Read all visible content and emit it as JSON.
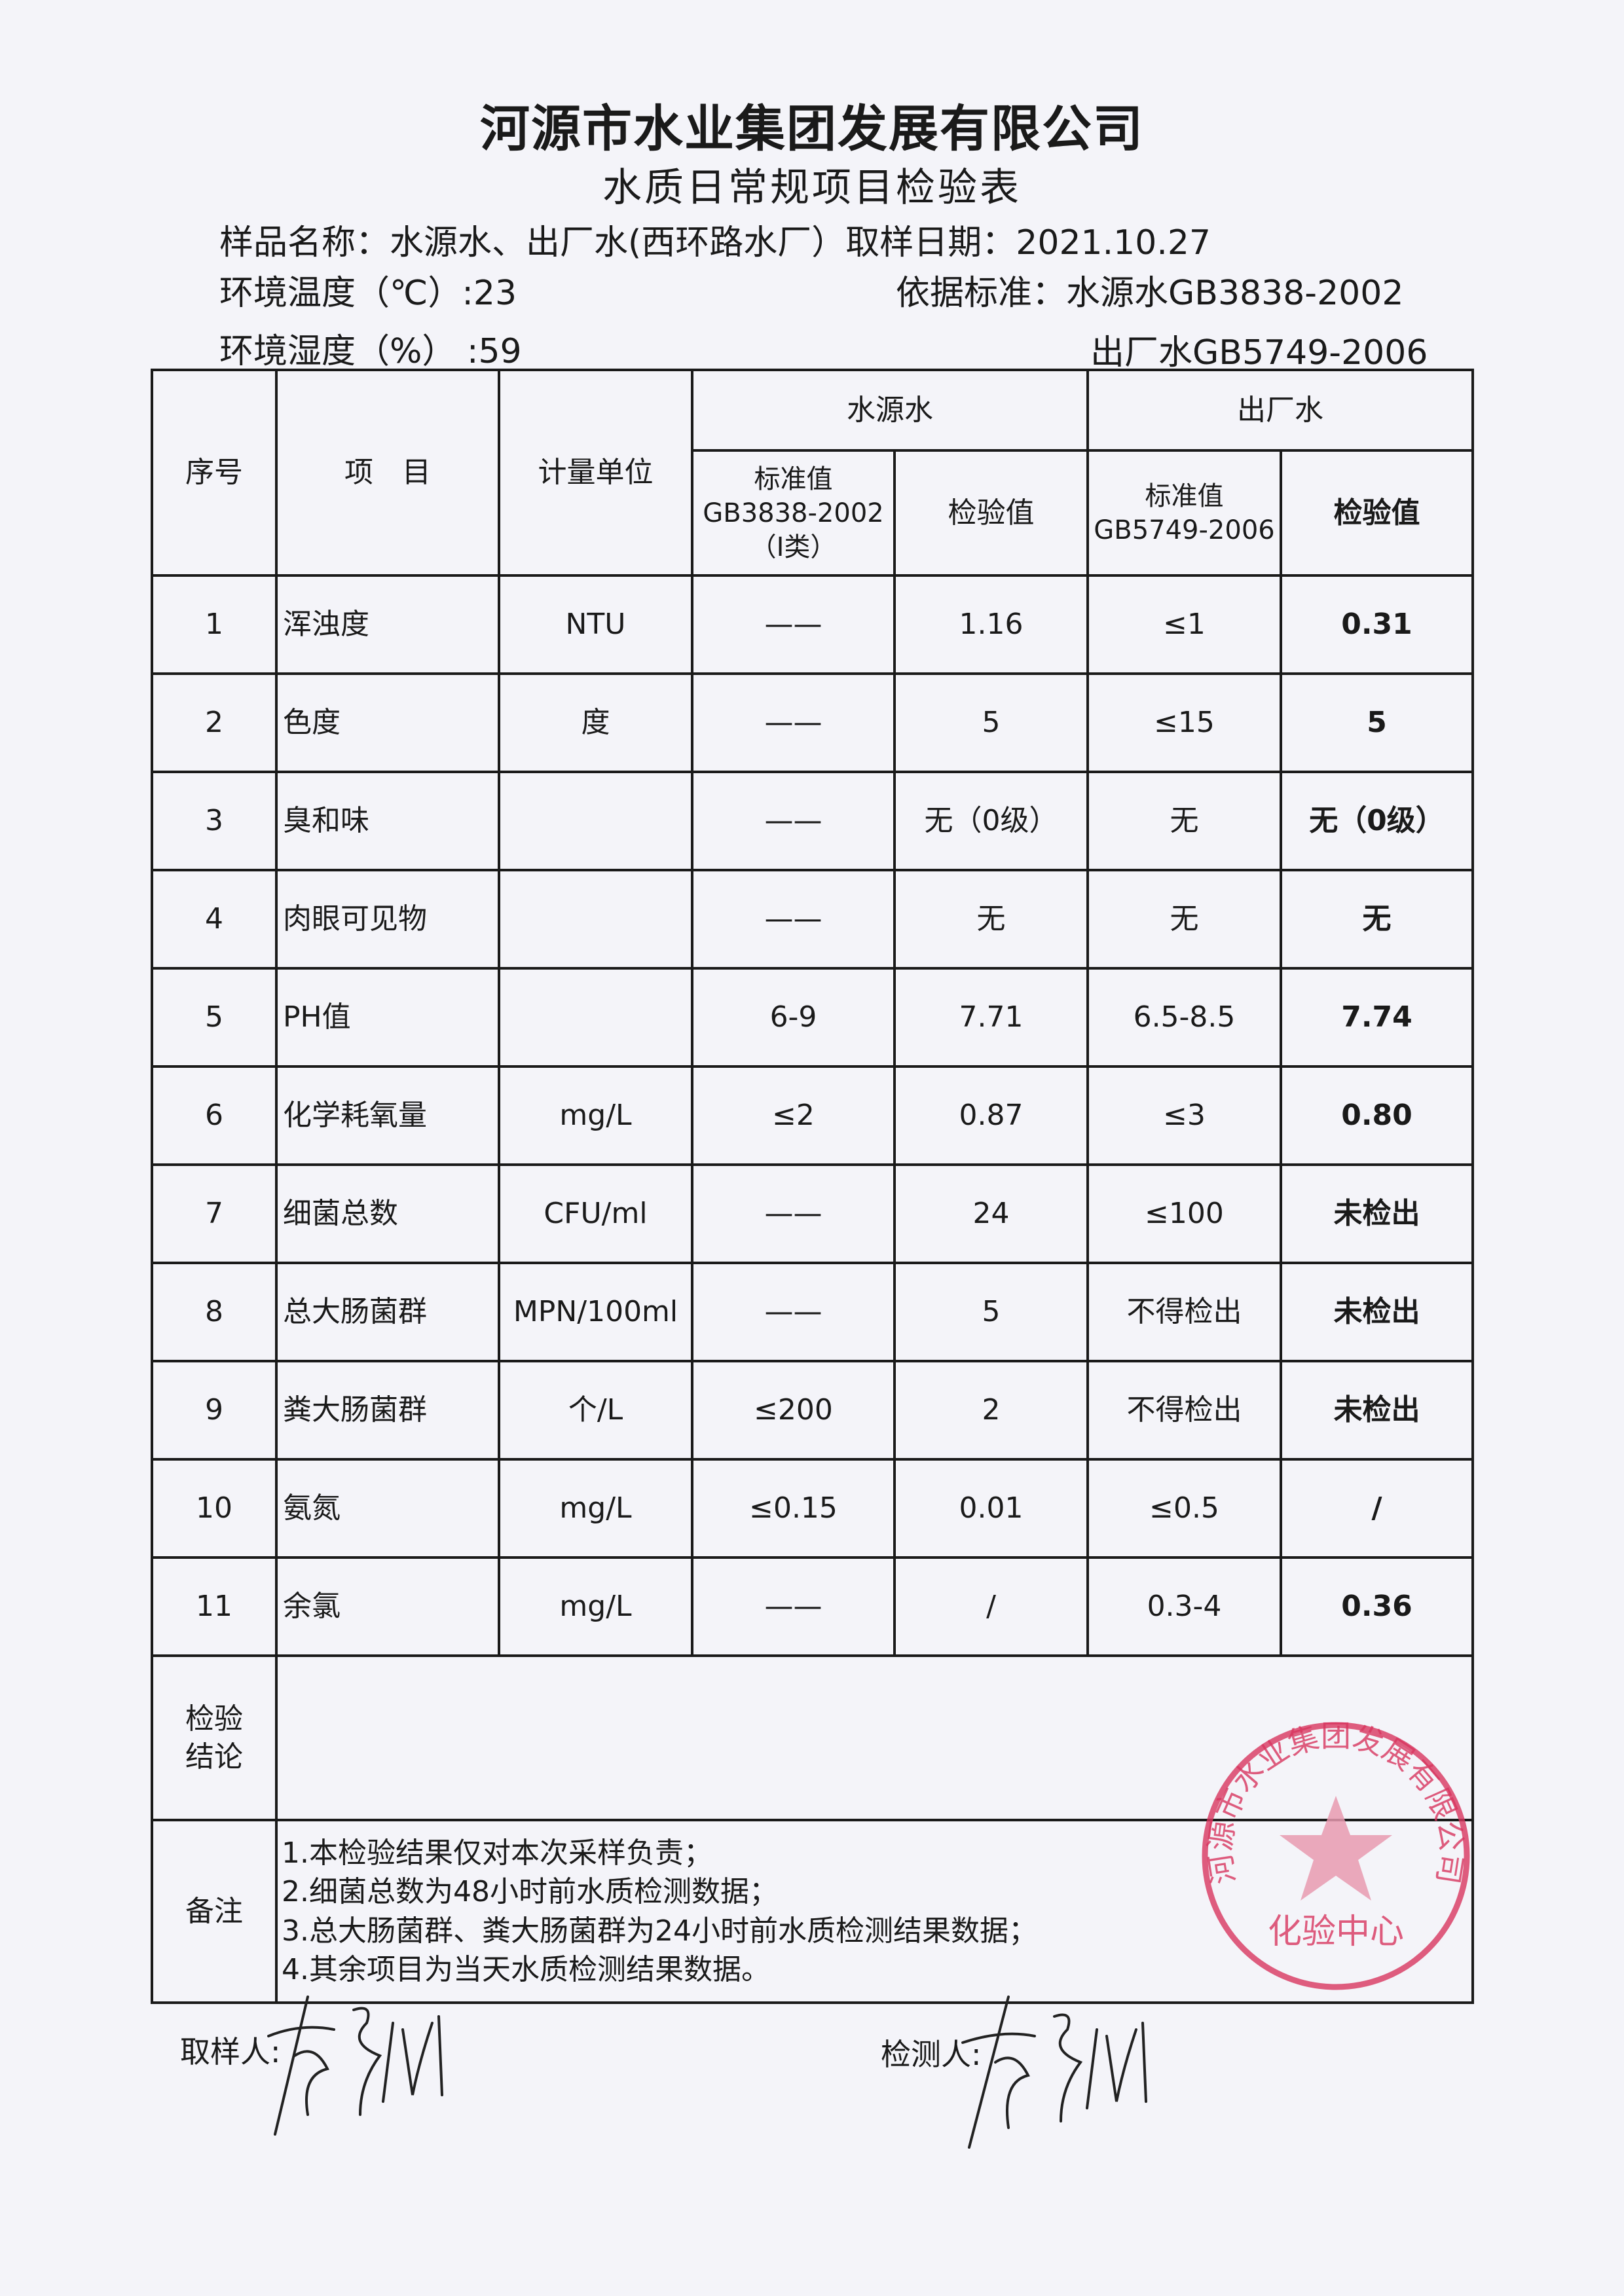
{
  "header": {
    "company": "河源市水业集团发展有限公司",
    "form_title": "水质日常规项目检验表",
    "sample_label": "样品名称：水源水、出厂水(西环路水厂）取样日期：2021.10.27",
    "temperature": "环境温度（℃）:23",
    "humidity": "环境湿度（%） :59",
    "standard_source": "依据标准：水源水GB3838-2002",
    "standard_plant": "出厂水GB5749-2006"
  },
  "table": {
    "col_no": "序号",
    "col_item": "项　目",
    "col_unit": "计量单位",
    "group_source": "水源水",
    "group_plant": "出厂水",
    "source_std": "标准值",
    "source_std_code": "GB3838-2002",
    "source_std_class": "（Ⅰ类）",
    "source_result": "检验值",
    "plant_std": "标准值",
    "plant_std_code": "GB5749-2006",
    "plant_result": "检验值",
    "rows": [
      {
        "no": "1",
        "item": "浑浊度",
        "unit": "NTU",
        "src_std": "——",
        "src_val": "1.16",
        "plt_std": "≤1",
        "plt_val": "0.31"
      },
      {
        "no": "2",
        "item": "色度",
        "unit": "度",
        "src_std": "——",
        "src_val": "5",
        "plt_std": "≤15",
        "plt_val": "5"
      },
      {
        "no": "3",
        "item": "臭和味",
        "unit": "",
        "src_std": "——",
        "src_val": "无（0级）",
        "plt_std": "无",
        "plt_val": "无（0级）"
      },
      {
        "no": "4",
        "item": "肉眼可见物",
        "unit": "",
        "src_std": "——",
        "src_val": "无",
        "plt_std": "无",
        "plt_val": "无"
      },
      {
        "no": "5",
        "item": "PH值",
        "unit": "",
        "src_std": "6-9",
        "src_val": "7.71",
        "plt_std": "6.5-8.5",
        "plt_val": "7.74"
      },
      {
        "no": "6",
        "item": "化学耗氧量",
        "unit": "mg/L",
        "src_std": "≤2",
        "src_val": "0.87",
        "plt_std": "≤3",
        "plt_val": "0.80"
      },
      {
        "no": "7",
        "item": "细菌总数",
        "unit": "CFU/ml",
        "src_std": "——",
        "src_val": "24",
        "plt_std": "≤100",
        "plt_val": "未检出"
      },
      {
        "no": "8",
        "item": "总大肠菌群",
        "unit": "MPN/100ml",
        "src_std": "——",
        "src_val": "5",
        "plt_std": "不得检出",
        "plt_val": "未检出"
      },
      {
        "no": "9",
        "item": "粪大肠菌群",
        "unit": "个/L",
        "src_std": "≤200",
        "src_val": "2",
        "plt_std": "不得检出",
        "plt_val": "未检出"
      },
      {
        "no": "10",
        "item": "氨氮",
        "unit": "mg/L",
        "src_std": "≤0.15",
        "src_val": "0.01",
        "plt_std": "≤0.5",
        "plt_val": "/"
      },
      {
        "no": "11",
        "item": "余氯",
        "unit": "mg/L",
        "src_std": "——",
        "src_val": "/",
        "plt_std": "0.3-4",
        "plt_val": "0.36"
      }
    ],
    "conclusion_label": "检验\n结论",
    "conclusion_value": "",
    "remarks_label": "备注",
    "remarks": [
      "1.本检验结果仅对本次采样负责；",
      "2.细菌总数为48小时前水质检测数据；",
      "3.总大肠菌群、粪大肠菌群为24小时前水质检测结果数据；",
      "4.其余项目为当天水质检测结果数据。"
    ]
  },
  "footer": {
    "sampler_label": "取样人:",
    "tester_label": "检测人:"
  },
  "stamp": {
    "text_outer": "河源市水业集团发展有限公司",
    "text_inner": "化验中心",
    "color": "#d8365f"
  }
}
